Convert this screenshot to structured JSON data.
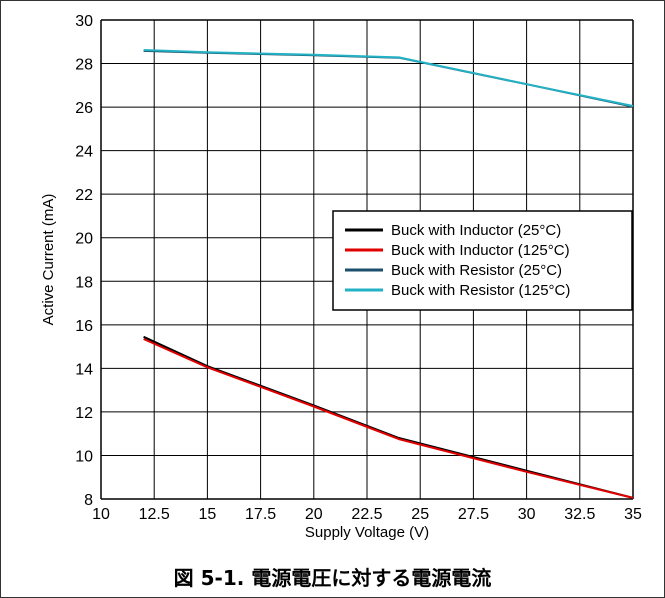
{
  "caption": "図 5-1. 電源電圧に対する電源電流",
  "colors": {
    "grid": "#000000",
    "series": [
      "#000000",
      "#e00000",
      "#1b4f6b",
      "#22b2c4"
    ]
  },
  "chart_data": {
    "type": "line",
    "xlabel": "Supply Voltage (V)",
    "ylabel": "Active Current (mA)",
    "xlim": [
      10,
      35
    ],
    "ylim": [
      8,
      30
    ],
    "xticks": [
      "10",
      "12.5",
      "15",
      "17.5",
      "20",
      "22.5",
      "25",
      "27.5",
      "30",
      "32.5",
      "35"
    ],
    "yticks": [
      "8",
      "10",
      "12",
      "14",
      "16",
      "18",
      "20",
      "22",
      "24",
      "26",
      "28",
      "30"
    ],
    "grid": true,
    "legend_position": "center-right",
    "series": [
      {
        "name": "Buck with Inductor (25°C)",
        "x": [
          12,
          15,
          20,
          24,
          30,
          35
        ],
        "y": [
          15.45,
          14.1,
          12.3,
          10.8,
          9.3,
          8.05
        ]
      },
      {
        "name": "Buck with Inductor (125°C)",
        "x": [
          12,
          15,
          20,
          24,
          30,
          35
        ],
        "y": [
          15.35,
          14.05,
          12.25,
          10.75,
          9.25,
          8.05
        ]
      },
      {
        "name": "Buck with Resistor (25°C)",
        "x": [
          12,
          15,
          20,
          24,
          30,
          35
        ],
        "y": [
          28.58,
          28.5,
          28.38,
          28.27,
          27.05,
          26.02
        ]
      },
      {
        "name": "Buck with Resistor (125°C)",
        "x": [
          12,
          15,
          20,
          24,
          30,
          35
        ],
        "y": [
          28.62,
          28.52,
          28.4,
          28.28,
          27.05,
          26.05
        ]
      }
    ]
  }
}
